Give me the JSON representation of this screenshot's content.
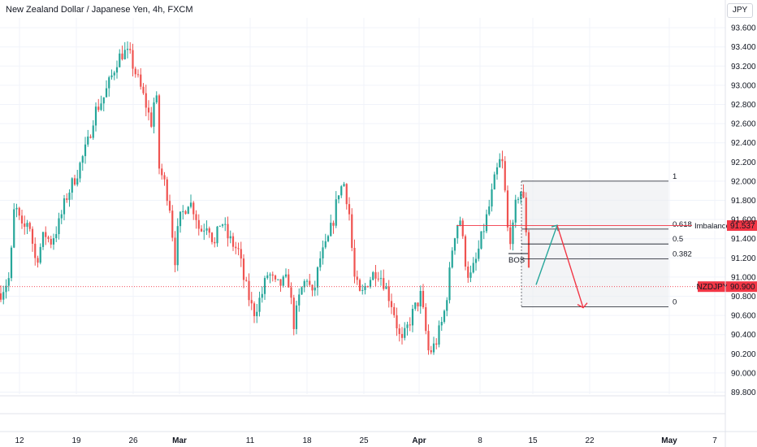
{
  "header": {
    "title": "New Zealand Dollar / Japanese Yen, 4h, FXCM",
    "currency": "JPY"
  },
  "colors": {
    "up": "#26a69a",
    "down": "#ef5350",
    "grid": "#f0f3fa",
    "fib_line": "#131722",
    "imbalance": "#f23645",
    "price_line": "#f23645",
    "projection_up": "#26a69a",
    "projection_down": "#f23645",
    "zone_fill": "#e9ebef"
  },
  "chart_data": {
    "type": "candlestick",
    "symbol": "NZDJPY",
    "timeframe": "4h",
    "ylim": [
      89.8,
      93.8
    ],
    "y_ticks": [
      "93.600",
      "93.400",
      "93.200",
      "93.000",
      "92.800",
      "92.600",
      "92.400",
      "92.200",
      "92.000",
      "91.800",
      "91.600",
      "91.400",
      "91.200",
      "91.000",
      "90.800",
      "90.600",
      "90.400",
      "90.200",
      "90.000",
      "89.800"
    ],
    "x_ticks": [
      "12",
      "19",
      "26",
      "Mar",
      "11",
      "18",
      "25",
      "Apr",
      "8",
      "15",
      "22",
      "May",
      "7"
    ],
    "price_path": [
      [
        0,
        90.83
      ],
      [
        12,
        91.0
      ],
      [
        18,
        91.77
      ],
      [
        28,
        91.46
      ],
      [
        35,
        91.62
      ],
      [
        44,
        91.15
      ],
      [
        55,
        91.46
      ],
      [
        62,
        91.36
      ],
      [
        72,
        91.54
      ],
      [
        82,
        91.84
      ],
      [
        95,
        92.09
      ],
      [
        108,
        92.39
      ],
      [
        116,
        92.71
      ],
      [
        128,
        92.88
      ],
      [
        137,
        93.08
      ],
      [
        144,
        93.26
      ],
      [
        152,
        93.35
      ],
      [
        160,
        93.3
      ],
      [
        170,
        93.05
      ],
      [
        180,
        92.79
      ],
      [
        186,
        92.6
      ],
      [
        192,
        92.98
      ],
      [
        196,
        92.14
      ],
      [
        204,
        91.94
      ],
      [
        210,
        91.7
      ],
      [
        215,
        91.15
      ],
      [
        220,
        91.57
      ],
      [
        232,
        91.8
      ],
      [
        240,
        91.69
      ],
      [
        246,
        91.47
      ],
      [
        256,
        91.58
      ],
      [
        264,
        91.32
      ],
      [
        272,
        91.61
      ],
      [
        280,
        91.42
      ],
      [
        294,
        91.26
      ],
      [
        300,
        90.98
      ],
      [
        312,
        90.62
      ],
      [
        322,
        90.81
      ],
      [
        330,
        91.05
      ],
      [
        340,
        90.9
      ],
      [
        355,
        90.97
      ],
      [
        362,
        90.5
      ],
      [
        370,
        90.85
      ],
      [
        378,
        91.0
      ],
      [
        385,
        90.78
      ],
      [
        394,
        91.19
      ],
      [
        402,
        91.33
      ],
      [
        410,
        91.58
      ],
      [
        417,
        91.9
      ],
      [
        424,
        91.98
      ],
      [
        430,
        91.66
      ],
      [
        436,
        91.0
      ],
      [
        444,
        90.78
      ],
      [
        452,
        90.95
      ],
      [
        464,
        91.08
      ],
      [
        472,
        90.96
      ],
      [
        484,
        90.68
      ],
      [
        494,
        90.29
      ],
      [
        506,
        90.58
      ],
      [
        518,
        90.81
      ],
      [
        528,
        90.2
      ],
      [
        536,
        90.3
      ],
      [
        546,
        90.58
      ],
      [
        552,
        90.92
      ],
      [
        558,
        91.4
      ],
      [
        566,
        91.64
      ],
      [
        572,
        91.21
      ],
      [
        578,
        90.97
      ],
      [
        586,
        91.17
      ],
      [
        594,
        91.45
      ],
      [
        602,
        91.72
      ],
      [
        610,
        92.05
      ],
      [
        616,
        92.22
      ],
      [
        620,
        92.15
      ],
      [
        624,
        91.52
      ],
      [
        630,
        91.38
      ],
      [
        636,
        91.83
      ],
      [
        641,
        91.91
      ],
      [
        646,
        91.73
      ],
      [
        650,
        91.2
      ],
      [
        654,
        90.92
      ]
    ],
    "current_price": {
      "label": "NZDJPY",
      "value": "90.900",
      "y": 90.9
    },
    "fibonacci": {
      "high": 92.0,
      "low": 90.69,
      "levels": [
        {
          "ratio": 1,
          "label": "1",
          "price": 92.0
        },
        {
          "ratio": 0.618,
          "label": "0.618",
          "price": 91.5
        },
        {
          "ratio": 0.5,
          "label": "0.5",
          "price": 91.345
        },
        {
          "ratio": 0.382,
          "label": "0.382",
          "price": 91.19
        },
        {
          "ratio": 0,
          "label": "0",
          "price": 90.69
        }
      ]
    },
    "imbalance": {
      "label": "Imbalance",
      "value": "91.537",
      "y": 91.537
    },
    "bos": {
      "label": "BOS",
      "y": 91.245
    },
    "projection": {
      "up_from": 90.92,
      "up_to": 91.54,
      "down_to": 90.68
    }
  }
}
